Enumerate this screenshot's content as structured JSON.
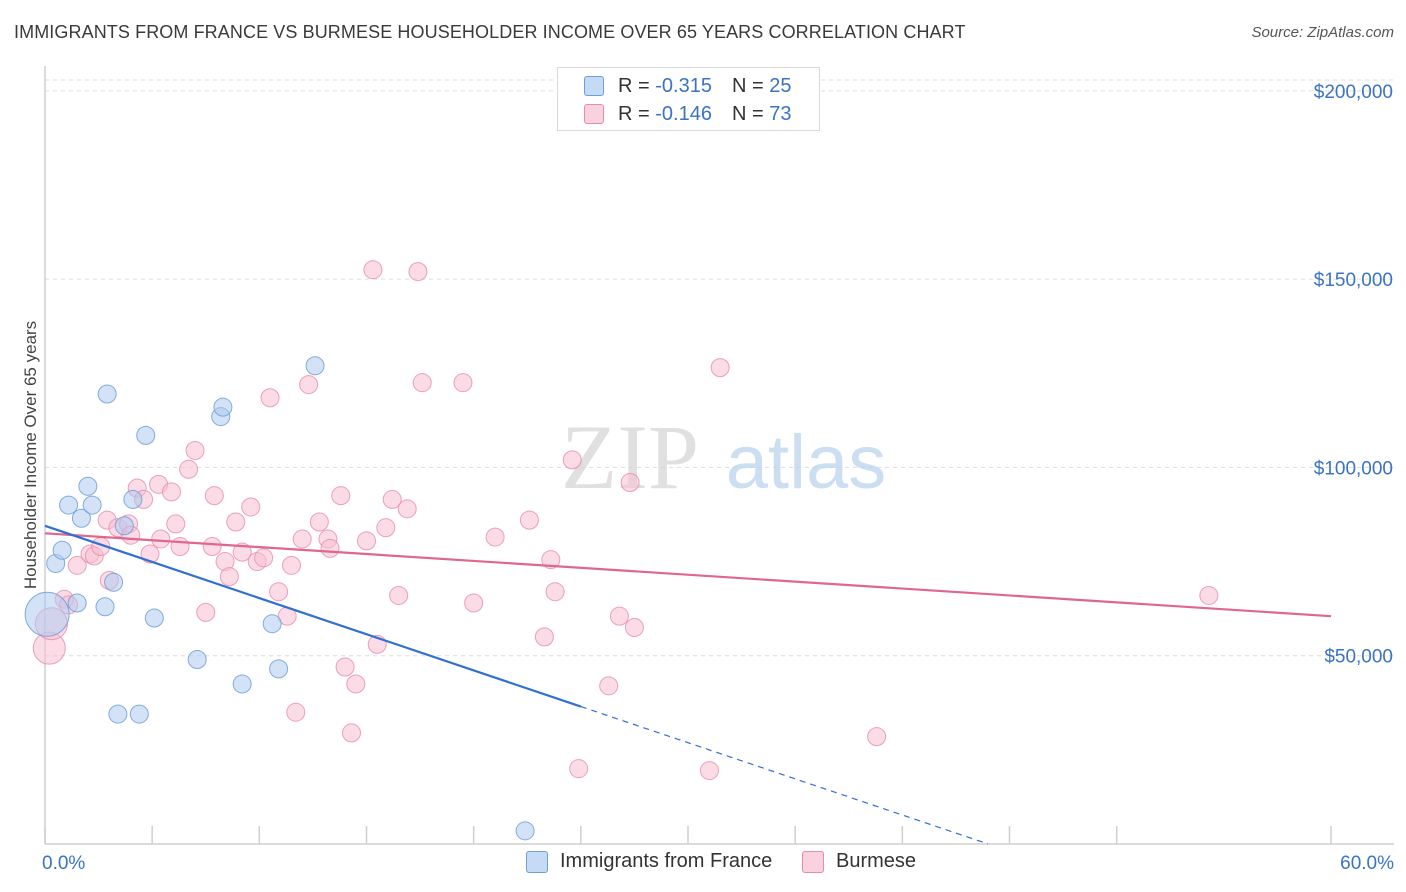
{
  "header": {
    "title": "IMMIGRANTS FROM FRANCE VS BURMESE HOUSEHOLDER INCOME OVER 65 YEARS CORRELATION CHART",
    "source": "Source: ZipAtlas.com"
  },
  "watermark": {
    "zip": "ZIP",
    "atlas": "atlas"
  },
  "legend": {
    "series1": {
      "r_label": "R = ",
      "r_value": "-0.315",
      "n_label": "N = ",
      "n_value": "25"
    },
    "series2": {
      "r_label": "R = ",
      "r_value": "-0.146",
      "n_label": "N = ",
      "n_value": "73"
    }
  },
  "colors": {
    "blue_fill": "#aecbf0",
    "blue_stroke": "#6f9fd8",
    "blue_line": "#3070d0",
    "pink_fill": "#f7bfd2",
    "pink_stroke": "#e88aab",
    "pink_line": "#e0668f",
    "grid": "#dddddd",
    "axis_text": "#3a73c4"
  },
  "chart_data": {
    "type": "scatter",
    "title": "IMMIGRANTS FROM FRANCE VS BURMESE HOUSEHOLDER INCOME OVER 65 YEARS CORRELATION CHART",
    "xlabel": "",
    "ylabel": "Householder Income Over 65 years",
    "xlim": [
      0,
      60
    ],
    "ylim": [
      0,
      205000
    ],
    "x_tick_labels": [
      {
        "value": 0,
        "label": "0.0%"
      },
      {
        "value": 60,
        "label": "60.0%"
      }
    ],
    "y_tick_labels": [
      {
        "value": 50000,
        "label": "$50,000"
      },
      {
        "value": 100000,
        "label": "$100,000"
      },
      {
        "value": 150000,
        "label": "$150,000"
      },
      {
        "value": 200000,
        "label": "$200,000"
      }
    ],
    "series": [
      {
        "name": "Immigrants from France",
        "color": "blue",
        "r": -0.315,
        "n": 25,
        "trend": {
          "x0": 0,
          "y0": 84500,
          "x1": 25,
          "y1": 36500,
          "dash_to_x": 44
        },
        "points": [
          [
            0.1,
            61000,
            22
          ],
          [
            0.5,
            74500,
            9
          ],
          [
            0.8,
            78000,
            9
          ],
          [
            1.1,
            90000,
            9
          ],
          [
            1.5,
            64000,
            9
          ],
          [
            1.7,
            86500,
            9
          ],
          [
            2.0,
            95000,
            9
          ],
          [
            2.2,
            90000,
            9
          ],
          [
            2.8,
            63000,
            9
          ],
          [
            2.9,
            119500,
            9
          ],
          [
            3.2,
            69500,
            9
          ],
          [
            3.4,
            34500,
            9
          ],
          [
            3.7,
            84500,
            9
          ],
          [
            4.1,
            91500,
            9
          ],
          [
            4.4,
            34500,
            9
          ],
          [
            4.7,
            108500,
            9
          ],
          [
            5.1,
            60000,
            9
          ],
          [
            7.1,
            49000,
            9
          ],
          [
            8.2,
            113500,
            9
          ],
          [
            8.3,
            116000,
            9
          ],
          [
            9.2,
            42500,
            9
          ],
          [
            10.6,
            58500,
            9
          ],
          [
            10.9,
            46500,
            9
          ],
          [
            12.6,
            127000,
            9
          ],
          [
            22.4,
            3500,
            9
          ]
        ]
      },
      {
        "name": "Burmese",
        "color": "pink",
        "r": -0.146,
        "n": 73,
        "trend": {
          "x0": 0,
          "y0": 82500,
          "x1": 60,
          "y1": 60500
        },
        "points": [
          [
            0.2,
            52000,
            16
          ],
          [
            0.3,
            58500,
            16
          ],
          [
            0.9,
            65000,
            9
          ],
          [
            1.1,
            63500,
            9
          ],
          [
            1.5,
            74000,
            9
          ],
          [
            2.1,
            77000,
            9
          ],
          [
            2.3,
            76500,
            9
          ],
          [
            2.6,
            79000,
            9
          ],
          [
            2.9,
            86000,
            9
          ],
          [
            3.0,
            70000,
            9
          ],
          [
            3.4,
            84000,
            9
          ],
          [
            3.9,
            85000,
            9
          ],
          [
            4.0,
            82000,
            9
          ],
          [
            4.3,
            94500,
            9
          ],
          [
            4.6,
            91500,
            9
          ],
          [
            4.9,
            77000,
            9
          ],
          [
            5.3,
            95500,
            9
          ],
          [
            5.4,
            81000,
            9
          ],
          [
            5.9,
            93500,
            9
          ],
          [
            6.1,
            85000,
            9
          ],
          [
            6.3,
            79000,
            9
          ],
          [
            6.7,
            99500,
            9
          ],
          [
            7.0,
            104500,
            9
          ],
          [
            7.5,
            61500,
            9
          ],
          [
            7.8,
            79000,
            9
          ],
          [
            7.9,
            92500,
            9
          ],
          [
            8.4,
            75000,
            9
          ],
          [
            8.6,
            71000,
            9
          ],
          [
            8.9,
            85500,
            9
          ],
          [
            9.2,
            77500,
            9
          ],
          [
            9.6,
            89500,
            9
          ],
          [
            9.9,
            75000,
            9
          ],
          [
            10.2,
            76000,
            9
          ],
          [
            10.5,
            118500,
            9
          ],
          [
            10.9,
            67000,
            9
          ],
          [
            11.3,
            60500,
            9
          ],
          [
            11.5,
            74000,
            9
          ],
          [
            11.7,
            35000,
            9
          ],
          [
            12.0,
            81000,
            9
          ],
          [
            12.3,
            122000,
            9
          ],
          [
            12.8,
            85500,
            9
          ],
          [
            13.2,
            81000,
            9
          ],
          [
            13.3,
            78500,
            9
          ],
          [
            13.8,
            92500,
            9
          ],
          [
            14.0,
            47000,
            9
          ],
          [
            14.3,
            29500,
            9
          ],
          [
            14.5,
            42500,
            9
          ],
          [
            15.0,
            80500,
            9
          ],
          [
            15.3,
            152500,
            9
          ],
          [
            15.5,
            53000,
            9
          ],
          [
            15.9,
            84000,
            9
          ],
          [
            16.2,
            91500,
            9
          ],
          [
            16.5,
            66000,
            9
          ],
          [
            16.9,
            89000,
            9
          ],
          [
            17.4,
            152000,
            9
          ],
          [
            17.6,
            122500,
            9
          ],
          [
            19.5,
            122500,
            9
          ],
          [
            20.0,
            64000,
            9
          ],
          [
            21.0,
            81500,
            9
          ],
          [
            22.6,
            86000,
            9
          ],
          [
            23.3,
            55000,
            9
          ],
          [
            23.6,
            75500,
            9
          ],
          [
            23.8,
            67000,
            9
          ],
          [
            24.6,
            102000,
            9
          ],
          [
            24.9,
            20000,
            9
          ],
          [
            26.3,
            42000,
            9
          ],
          [
            26.8,
            60500,
            9
          ],
          [
            27.3,
            96000,
            9
          ],
          [
            27.5,
            57500,
            9
          ],
          [
            31.0,
            19500,
            9
          ],
          [
            31.5,
            126500,
            9
          ],
          [
            38.8,
            28500,
            9
          ],
          [
            54.3,
            66000,
            9
          ]
        ]
      }
    ]
  },
  "bottom_legend": {
    "item1": "Immigrants from France",
    "item2": "Burmese"
  }
}
